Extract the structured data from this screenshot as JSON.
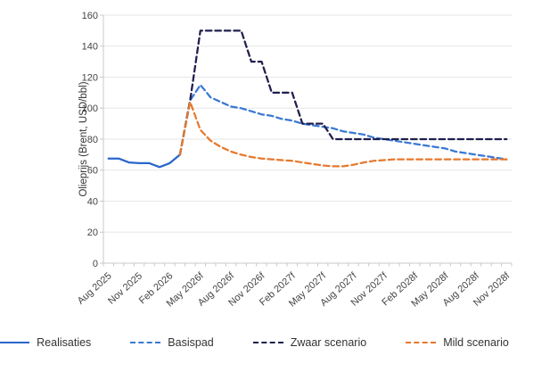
{
  "chart_data": {
    "type": "line",
    "title": "",
    "xlabel": "",
    "ylabel": "Olieprijs (Brent, USD/bbl)",
    "ylim": [
      0,
      160
    ],
    "ytick_step": 20,
    "y_tick_labels": [
      "0",
      "20",
      "40",
      "60",
      "80",
      "100",
      "120",
      "140",
      "160"
    ],
    "grid": "horizontal",
    "legend_position": "bottom",
    "categories": [
      "Aug 2025",
      "Sep 2025",
      "Oct 2025",
      "Nov 2025",
      "Dec 2025",
      "Jan 2026",
      "Feb 2026",
      "Mar 2026",
      "Apr 2026",
      "May 2026",
      "Jun 2026",
      "Jul 2026",
      "Aug 2026",
      "Sep 2026",
      "Oct 2026",
      "Nov 2026",
      "Dec 2026",
      "Jan 2027",
      "Feb 2027",
      "Mar 2027",
      "Apr 2027",
      "May 2027",
      "Jun 2027",
      "Jul 2027",
      "Aug 2027",
      "Sep 2027",
      "Oct 2027",
      "Nov 2027",
      "Dec 2027",
      "Jan 2028",
      "Feb 2028",
      "Mar 2028",
      "Apr 2028",
      "May 2028",
      "Jun 2028",
      "Jul 2028",
      "Aug 2028",
      "Sep 2028",
      "Oct 2028",
      "Nov 2028"
    ],
    "x_tick_labels": [
      "Aug 2025",
      "Nov 2025",
      "Feb 2026",
      "May 2026f",
      "Aug 2026f",
      "Nov 2026f",
      "Feb 2027f",
      "May 2027f",
      "Aug 2027f",
      "Nov 2027f",
      "Feb 2028f",
      "May 2028f",
      "Aug 2028f",
      "Nov 2028f"
    ],
    "x_tick_every": 3,
    "series": [
      {
        "name": "Realisaties",
        "style": "solid",
        "color": "#2a66cc",
        "values": [
          67.5,
          67.5,
          65,
          64.5,
          64.5,
          62,
          64.5,
          70,
          null,
          null,
          null,
          null,
          null,
          null,
          null,
          null,
          null,
          null,
          null,
          null,
          null,
          null,
          null,
          null,
          null,
          null,
          null,
          null,
          null,
          null,
          null,
          null,
          null,
          null,
          null,
          null,
          null,
          null,
          null,
          null
        ]
      },
      {
        "name": "Basispad",
        "style": "dashed",
        "color": "#3a78d4",
        "values": [
          null,
          null,
          null,
          null,
          null,
          null,
          null,
          70,
          105,
          115,
          107,
          104,
          101,
          100,
          98,
          96,
          95,
          93,
          92,
          90,
          89,
          88,
          87,
          85,
          84,
          83,
          81,
          80,
          79,
          78,
          77,
          76,
          75,
          74,
          72,
          71,
          70,
          69,
          68,
          67
        ]
      },
      {
        "name": "Zwaar scenario",
        "style": "dashed",
        "color": "#1f1f4e",
        "values": [
          null,
          null,
          null,
          null,
          null,
          null,
          null,
          70,
          105,
          150,
          150,
          150,
          150,
          150,
          130,
          130,
          110,
          110,
          110,
          90,
          90,
          90,
          80,
          80,
          80,
          80,
          80,
          80,
          80,
          80,
          80,
          80,
          80,
          80,
          80,
          80,
          80,
          80,
          80,
          80
        ]
      },
      {
        "name": "Mild scenario",
        "style": "dashed",
        "color": "#e8782c",
        "values": [
          null,
          null,
          null,
          null,
          null,
          null,
          null,
          70,
          104,
          86,
          79,
          75,
          72,
          70,
          68.5,
          67.5,
          67,
          66.5,
          66,
          65,
          64,
          63,
          62.5,
          62.5,
          63.5,
          65,
          66,
          66.5,
          67,
          67,
          67,
          67,
          67,
          67,
          67,
          67,
          67,
          67,
          67,
          67
        ]
      }
    ],
    "colors": {
      "grid": "#e6e6e6",
      "axis": "#c8c8c8",
      "tick_text": "#444444",
      "axis_title_text": "#333333"
    }
  }
}
